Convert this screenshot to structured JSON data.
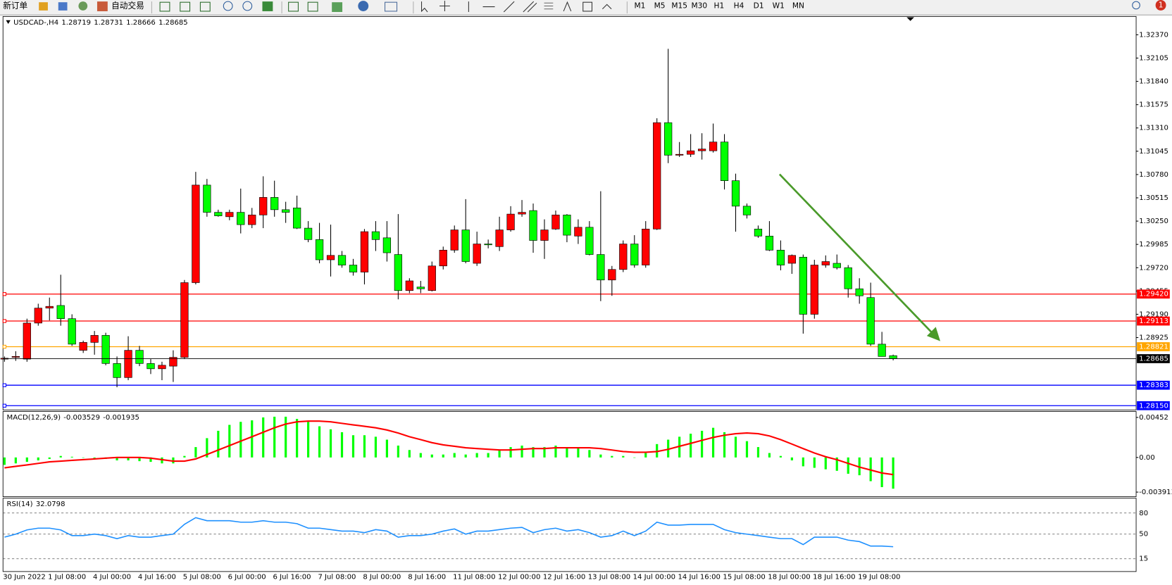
{
  "toolbar": {
    "new_order": "新订单",
    "auto_trading": "自动交易",
    "timeframes": [
      "M1",
      "M5",
      "M15",
      "M30",
      "H1",
      "H4",
      "D1",
      "W1",
      "MN"
    ],
    "badge": "1"
  },
  "chart_data": [
    {
      "type": "candlestick",
      "title": "USDCAD-,H4",
      "categories": [
        "30 Jun 2022",
        null,
        null,
        null,
        "1 Jul 08:00",
        null,
        null,
        null,
        "4 Jul 00:00",
        null,
        null,
        null,
        "4 Jul 16:00",
        null,
        null,
        null,
        "5 Jul 08:00",
        null,
        null,
        null,
        "6 Jul 00:00",
        null,
        null,
        null,
        "6 Jul 16:00",
        null,
        null,
        null,
        "7 Jul 08:00",
        null,
        null,
        null,
        "8 Jul 00:00",
        null,
        null,
        null,
        "8 Jul 16:00",
        null,
        null,
        null,
        "11 Jul 08:00",
        null,
        null,
        null,
        "12 Jul 00:00",
        null,
        null,
        null,
        "12 Jul 16:00",
        null,
        null,
        null,
        "13 Jul 08:00",
        null,
        null,
        null,
        "14 Jul 00:00",
        null,
        null,
        null,
        "14 Jul 16:00",
        null,
        null,
        null,
        "15 Jul 08:00",
        null,
        null,
        null,
        "18 Jul 00:00",
        null,
        null,
        null,
        "18 Jul 16:00",
        null,
        null,
        null,
        "19 Jul 08:00",
        null,
        null,
        null
      ],
      "open": [
        1.2868,
        1.287,
        1.2868,
        1.2909,
        1.2926,
        1.2929,
        1.2914,
        1.2878,
        1.2887,
        1.2895,
        1.2863,
        1.2847,
        1.2878,
        1.2863,
        1.2857,
        1.286,
        1.287,
        1.2955,
        1.3066,
        1.3035,
        1.303,
        1.3035,
        1.3021,
        1.3032,
        1.3052,
        1.3038,
        1.304,
        1.3017,
        1.3004,
        1.2981,
        1.2986,
        1.2975,
        1.2967,
        1.3013,
        1.3006,
        1.2987,
        1.2946,
        1.295,
        1.2946,
        1.2974,
        1.2992,
        1.3015,
        1.2977,
        1.2999,
        1.2996,
        1.3015,
        1.3033,
        1.3037,
        1.3003,
        1.3016,
        1.3032,
        1.3008,
        1.3018,
        1.2987,
        1.2958,
        1.297,
        1.2999,
        1.2975,
        1.3016,
        1.3137,
        1.31,
        1.3101,
        1.3105,
        1.3105,
        1.3115,
        1.3071,
        1.3042,
        1.3016,
        1.3008,
        1.2992,
        1.2977,
        1.2984,
        1.2919,
        1.2975,
        1.2977,
        1.2972,
        1.2948,
        1.2938,
        1.2885,
        1.28719
      ],
      "high": [
        1.2871,
        1.2877,
        1.2914,
        1.2931,
        1.2938,
        1.2964,
        1.2919,
        1.2889,
        1.29,
        1.2898,
        1.2871,
        1.2894,
        1.2883,
        1.2868,
        1.2865,
        1.2878,
        1.2958,
        1.3081,
        1.3073,
        1.3038,
        1.3038,
        1.3062,
        1.304,
        1.3076,
        1.3071,
        1.3047,
        1.3054,
        1.3025,
        1.3023,
        1.3021,
        1.2991,
        1.2982,
        1.3016,
        1.3025,
        1.3025,
        1.3033,
        1.296,
        1.2957,
        1.2979,
        1.2996,
        1.302,
        1.305,
        1.3013,
        1.3004,
        1.303,
        1.3042,
        1.3049,
        1.3045,
        1.3027,
        1.3037,
        1.3033,
        1.3027,
        1.3025,
        1.3059,
        1.2974,
        1.3003,
        1.3009,
        1.3025,
        1.3142,
        1.3221,
        1.3115,
        1.3124,
        1.3125,
        1.3136,
        1.3124,
        1.3079,
        1.3045,
        1.302,
        1.3025,
        1.3003,
        1.2987,
        1.2987,
        1.2981,
        1.2986,
        1.2987,
        1.2975,
        1.296,
        1.2955,
        1.2899,
        1.28731
      ],
      "low": [
        1.2865,
        1.2866,
        1.2865,
        1.2906,
        1.2912,
        1.2906,
        1.2883,
        1.2875,
        1.2873,
        1.2861,
        1.2836,
        1.2844,
        1.286,
        1.2851,
        1.2844,
        1.2842,
        1.2868,
        1.2953,
        1.303,
        1.303,
        1.3026,
        1.3011,
        1.3017,
        1.3017,
        1.303,
        1.3023,
        1.3016,
        1.3001,
        1.2977,
        1.2962,
        1.2972,
        1.2963,
        1.2953,
        1.2991,
        1.2979,
        1.2936,
        1.2943,
        1.2943,
        1.2945,
        1.297,
        1.2989,
        1.2977,
        1.2974,
        1.2994,
        1.2991,
        1.3013,
        1.303,
        1.2989,
        1.2982,
        1.3015,
        1.3001,
        1.2999,
        1.2986,
        1.2934,
        1.294,
        1.2967,
        1.2972,
        1.2972,
        1.3015,
        1.3091,
        1.3098,
        1.3098,
        1.3095,
        1.3103,
        1.3061,
        1.3013,
        1.3028,
        1.3006,
        1.2991,
        1.2969,
        1.2965,
        1.2897,
        1.2914,
        1.2972,
        1.297,
        1.2938,
        1.2931,
        1.2883,
        1.2871,
        1.28666
      ],
      "close": [
        1.2869,
        1.2871,
        1.2909,
        1.2926,
        1.2928,
        1.2914,
        1.2885,
        1.2887,
        1.2895,
        1.2863,
        1.2847,
        1.2878,
        1.2863,
        1.2857,
        1.2861,
        1.287,
        1.2955,
        1.3066,
        1.3035,
        1.3031,
        1.3035,
        1.3021,
        1.3032,
        1.3052,
        1.3038,
        1.3035,
        1.3017,
        1.3004,
        1.2981,
        1.2986,
        1.2975,
        1.2967,
        1.3013,
        1.3004,
        1.2989,
        1.2946,
        1.2957,
        1.2948,
        1.2974,
        1.2992,
        1.3015,
        1.2979,
        1.2999,
        1.2998,
        1.3015,
        1.3033,
        1.3035,
        1.3003,
        1.3015,
        1.3032,
        1.3009,
        1.3018,
        1.2987,
        1.2958,
        1.297,
        1.2999,
        1.2975,
        1.3016,
        1.3137,
        1.31,
        1.3101,
        1.3105,
        1.3107,
        1.3115,
        1.3071,
        1.3042,
        1.3032,
        1.3008,
        1.2992,
        1.2975,
        1.2986,
        1.2919,
        1.2975,
        1.2979,
        1.2972,
        1.2948,
        1.294,
        1.2885,
        1.2871,
        1.28685
      ],
      "up_color": "#ff0000",
      "down_color": "#00ff00",
      "price_line_color": "#000000",
      "ylim": [
        1.2811,
        1.3257
      ],
      "yticks": [
        {
          "value": 1.3237,
          "label": "1.32370"
        },
        1.32105,
        {
          "value": 1.3184,
          "label": "1.31840"
        },
        1.31575,
        {
          "value": 1.3131,
          "label": "1.31310"
        },
        1.31045,
        {
          "value": 1.3078,
          "label": "1.30780"
        },
        1.30515,
        {
          "value": 1.3025,
          "label": "1.30250"
        },
        1.29985,
        {
          "value": 1.2972,
          "label": "1.29720"
        },
        1.29455,
        {
          "value": 1.2919,
          "label": "1.29190"
        },
        1.28925
      ],
      "hlines": [
        {
          "value": 1.2942,
          "label": "1.29420",
          "color": "#ff0000"
        },
        {
          "value": 1.29113,
          "label": "1.29113",
          "color": "#ff0000"
        },
        {
          "value": 1.28821,
          "label": "1.28821",
          "color": "#ffa500"
        },
        {
          "value": 1.28383,
          "label": "1.28383",
          "color": "#0000ff"
        },
        {
          "value": 1.2815,
          "label": "1.28150",
          "color": "#0000ff"
        }
      ]
    },
    {
      "type": "macd",
      "title": "MACD(12,26,9)",
      "histogram": {
        "color": "#00ff00",
        "values": [
          -0.00084,
          -0.00067,
          -0.0005,
          -0.00033,
          -0.00017,
          0.00017,
          8e-05,
          0,
          -8e-05,
          -0.00017,
          -0.00033,
          -0.00033,
          -0.00042,
          -0.0005,
          -0.00067,
          -0.00067,
          0.00017,
          0.00117,
          0.00218,
          0.00301,
          0.00368,
          0.00402,
          0.00419,
          0.00452,
          0.0046,
          0.0046,
          0.00435,
          0.00402,
          0.00352,
          0.00318,
          0.00285,
          0.00251,
          0.00251,
          0.00234,
          0.00201,
          0.00134,
          0.00084,
          0.0005,
          0.00033,
          0.00033,
          0.0005,
          0.00033,
          0.0005,
          0.0005,
          0.00084,
          0.00117,
          0.00134,
          0.00117,
          0.00117,
          0.00134,
          0.00117,
          0.00117,
          0.00084,
          0.00033,
          0.00017,
          0.00017,
          0,
          0.0005,
          0.00151,
          0.00201,
          0.00234,
          0.00268,
          0.00301,
          0.00335,
          0.00285,
          0.00234,
          0.00184,
          0.00117,
          0.0005,
          0.00017,
          -0.00033,
          -0.001,
          -0.00117,
          -0.00134,
          -0.00151,
          -0.00184,
          -0.00201,
          -0.00268,
          -0.00335,
          -0.003529
        ]
      },
      "signal": {
        "color": "#ff0000",
        "values": [
          -0.00117,
          -0.001,
          -0.00084,
          -0.00067,
          -0.0005,
          -0.00042,
          -0.00033,
          -0.00025,
          -0.00017,
          -8e-05,
          0,
          0,
          0,
          -8e-05,
          -0.00025,
          -0.00042,
          -0.00042,
          -0.00017,
          0.00033,
          0.00084,
          0.00134,
          0.00184,
          0.00234,
          0.00285,
          0.00335,
          0.00377,
          0.00402,
          0.0041,
          0.0041,
          0.00402,
          0.00385,
          0.00368,
          0.00352,
          0.00335,
          0.0031,
          0.00276,
          0.00234,
          0.00201,
          0.00167,
          0.00142,
          0.00126,
          0.00109,
          0.001,
          0.00092,
          0.00084,
          0.00084,
          0.00092,
          0.001,
          0.001,
          0.00109,
          0.00109,
          0.00109,
          0.00109,
          0.001,
          0.00084,
          0.00067,
          0.00059,
          0.00059,
          0.00067,
          0.00092,
          0.00126,
          0.00159,
          0.00193,
          0.00226,
          0.00251,
          0.00268,
          0.00276,
          0.00268,
          0.00243,
          0.00201,
          0.00151,
          0.001,
          0.0005,
          8e-05,
          -0.00025,
          -0.00067,
          -0.00109,
          -0.00142,
          -0.00176,
          -0.001935
        ]
      },
      "ylim": [
        -0.00435,
        0.00511
      ],
      "yticks": [
        0.00452,
        {
          "value": 0,
          "label": "0.00"
        },
        -0.003913
      ]
    },
    {
      "type": "rsi",
      "title": "RSI(14)",
      "color": "#1e90ff",
      "values": [
        45.7,
        50,
        56,
        58.5,
        58.5,
        56,
        47.9,
        47.9,
        50,
        47.9,
        43.6,
        47.9,
        45.7,
        45.7,
        47.9,
        50,
        64,
        73.4,
        69.1,
        69.1,
        69.1,
        67,
        67,
        69.1,
        67,
        67,
        64.9,
        58.5,
        58.5,
        56.4,
        54.3,
        54.3,
        52.1,
        56.4,
        54.3,
        45.7,
        47.9,
        47.9,
        50,
        54.3,
        57.4,
        50,
        54.3,
        54.3,
        56.4,
        58.5,
        59.6,
        52.1,
        56.4,
        58.5,
        54.3,
        56.4,
        52.1,
        45.7,
        47.9,
        54.3,
        47.9,
        54.3,
        67,
        62.8,
        62.8,
        63.8,
        63.8,
        63.8,
        56.4,
        52.1,
        50,
        47.9,
        45.7,
        43.6,
        43.6,
        35.1,
        45.7,
        45.7,
        45.7,
        41.5,
        39.4,
        33,
        33,
        32.0798
      ],
      "ylim": [
        0,
        100
      ],
      "yticks": [
        80,
        50,
        15
      ]
    }
  ]
}
